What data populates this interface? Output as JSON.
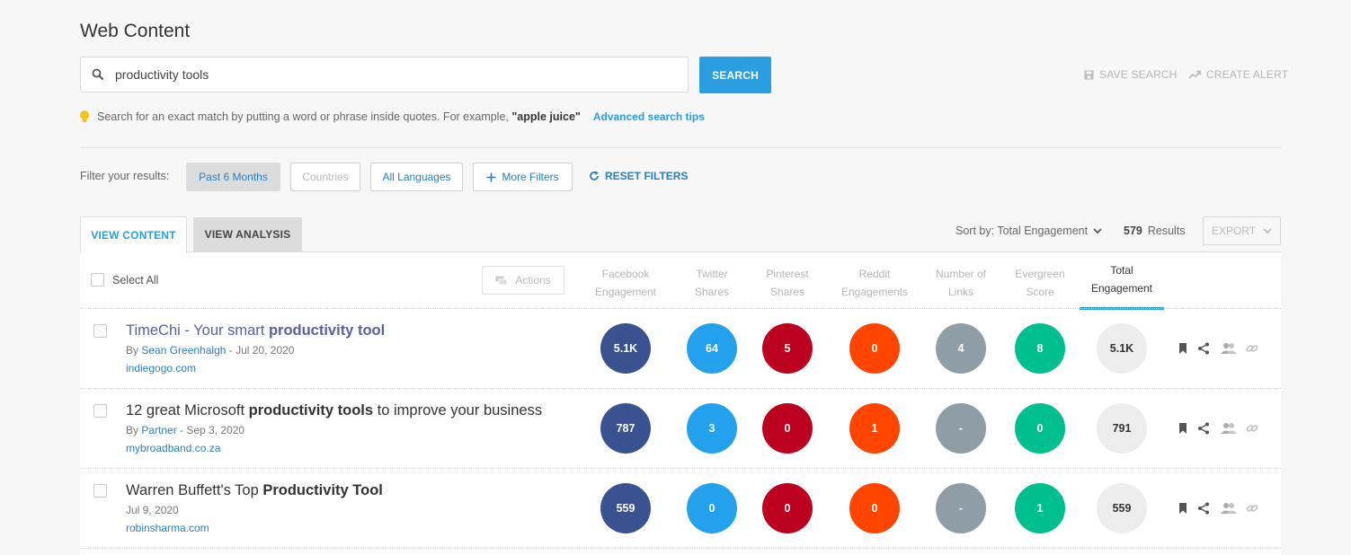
{
  "page_title": "Web Content",
  "search": {
    "value": "productivity tools",
    "button": "SEARCH"
  },
  "top_actions": {
    "save_search": "SAVE SEARCH",
    "create_alert": "CREATE ALERT"
  },
  "tip": {
    "text": "Search for an exact match by putting a word or phrase inside quotes. For example, ",
    "example": "\"apple juice\"",
    "link": "Advanced search tips"
  },
  "filters": {
    "label": "Filter your results:",
    "past": "Past 6 Months",
    "countries": "Countries",
    "languages": "All Languages",
    "more": "More Filters",
    "reset": "RESET FILTERS"
  },
  "tabs": {
    "content": "VIEW CONTENT",
    "analysis": "VIEW ANALYSIS"
  },
  "sort": {
    "label": "Sort by: Total Engagement",
    "count": "579",
    "results_label": "Results",
    "export": "EXPORT"
  },
  "table": {
    "select_all": "Select All",
    "actions": "Actions",
    "columns": [
      {
        "line1": "Facebook",
        "line2": "Engagement",
        "color": "#3b5291"
      },
      {
        "line1": "Twitter",
        "line2": "Shares",
        "color": "#24a1ec"
      },
      {
        "line1": "Pinterest",
        "line2": "Shares",
        "color": "#bb0020"
      },
      {
        "line1": "Reddit",
        "line2": "Engagements",
        "color": "#ff4500"
      },
      {
        "line1": "Number of",
        "line2": "Links",
        "color": "#8f9ea6"
      },
      {
        "line1": "Evergreen",
        "line2": "Score",
        "color": "#00bf8f"
      },
      {
        "line1": "Total",
        "line2": "Engagement",
        "color": "#ededed"
      }
    ],
    "rows": [
      {
        "title_pre": "TimeChi - Your smart ",
        "title_bold": "productivity tool",
        "title_post": "",
        "by": "By ",
        "author": "Sean Greenhalgh",
        "date": " - Jul 20, 2020",
        "domain": "indiegogo.com",
        "values": [
          "5.1K",
          "64",
          "5",
          "0",
          "4",
          "8",
          "5.1K"
        ]
      },
      {
        "title_pre": "12 great Microsoft ",
        "title_bold": "productivity tools",
        "title_post": " to improve your business",
        "by": "By ",
        "author": "Partner",
        "date": " - Sep 3, 2020",
        "domain": "mybroadband.co.za",
        "values": [
          "787",
          "3",
          "0",
          "1",
          "-",
          "0",
          "791"
        ]
      },
      {
        "title_pre": "Warren Buffett's Top ",
        "title_bold": "Productivity Tool",
        "title_post": "",
        "by": "",
        "author": "",
        "date": "Jul 9, 2020",
        "domain": "robinsharma.com",
        "values": [
          "559",
          "0",
          "0",
          "0",
          "-",
          "1",
          "559"
        ]
      }
    ]
  }
}
